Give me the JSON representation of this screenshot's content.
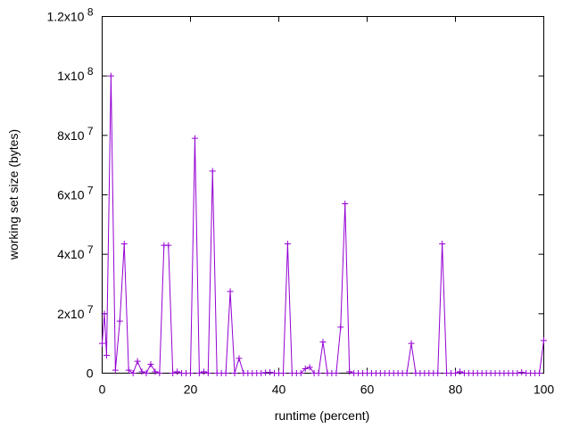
{
  "chart_data": {
    "type": "line",
    "title": "",
    "xlabel": "runtime (percent)",
    "ylabel": "working set size (bytes)",
    "xlim": [
      0,
      100
    ],
    "ylim": [
      0,
      120000000
    ],
    "grid": false,
    "legend": "none",
    "x_ticks": [
      {
        "v": 0,
        "label": "0"
      },
      {
        "v": 20,
        "label": "20"
      },
      {
        "v": 40,
        "label": "40"
      },
      {
        "v": 60,
        "label": "60"
      },
      {
        "v": 80,
        "label": "80"
      },
      {
        "v": 100,
        "label": "100"
      }
    ],
    "y_ticks": [
      {
        "v": 0,
        "base": "0",
        "exp": ""
      },
      {
        "v": 20000000,
        "base": "2x10",
        "exp": "7"
      },
      {
        "v": 40000000,
        "base": "4x10",
        "exp": "7"
      },
      {
        "v": 60000000,
        "base": "6x10",
        "exp": "7"
      },
      {
        "v": 80000000,
        "base": "8x10",
        "exp": "7"
      },
      {
        "v": 100000000,
        "base": "1x10",
        "exp": "8"
      },
      {
        "v": 120000000,
        "base": "1.2x10",
        "exp": "8"
      }
    ],
    "series": [
      {
        "name": "working set",
        "color": "#9400d3",
        "x": [
          0,
          0.5,
          1,
          2,
          3,
          4,
          5,
          6,
          7,
          8,
          9,
          10,
          11,
          12,
          13,
          14,
          15,
          16,
          17,
          18,
          19,
          20,
          21,
          22,
          23,
          24,
          25,
          26,
          27,
          28,
          29,
          30,
          31,
          32,
          33,
          34,
          35,
          36,
          37,
          38,
          39,
          40,
          41,
          42,
          43,
          44,
          45,
          46,
          47,
          48,
          49,
          50,
          51,
          52,
          53,
          54,
          55,
          56,
          57,
          58,
          59,
          60,
          61,
          62,
          63,
          64,
          65,
          66,
          67,
          68,
          69,
          70,
          71,
          72,
          73,
          74,
          75,
          76,
          77,
          78,
          79,
          80,
          81,
          82,
          83,
          84,
          85,
          86,
          87,
          88,
          89,
          90,
          91,
          92,
          93,
          94,
          95,
          96,
          97,
          98,
          99,
          100
        ],
        "y": [
          10000000,
          20000000,
          6000000,
          100000000,
          1000000,
          17500000,
          43500000,
          1000000,
          0,
          4000000,
          500000,
          0,
          3000000,
          500000,
          0,
          43000000,
          43000000,
          0,
          500000,
          0,
          0,
          0,
          79000000,
          0,
          500000,
          0,
          68000000,
          0,
          0,
          0,
          27500000,
          0,
          5000000,
          0,
          0,
          0,
          0,
          0,
          200000,
          300000,
          0,
          0,
          0,
          43500000,
          0,
          0,
          0,
          1500000,
          2000000,
          0,
          0,
          10500000,
          0,
          0,
          0,
          15500000,
          57000000,
          500000,
          0,
          0,
          0,
          0,
          0,
          0,
          0,
          0,
          0,
          0,
          0,
          0,
          0,
          10000000,
          0,
          0,
          0,
          0,
          0,
          0,
          43500000,
          0,
          0,
          0,
          500000,
          0,
          0,
          0,
          0,
          0,
          0,
          0,
          0,
          0,
          0,
          0,
          0,
          0,
          300000,
          0,
          0,
          0,
          0,
          11000000
        ]
      }
    ]
  }
}
